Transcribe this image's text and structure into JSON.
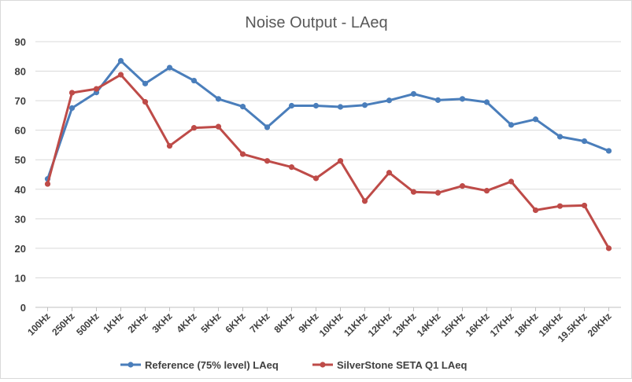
{
  "chart_data": {
    "type": "line",
    "title": "Noise Output - LAeq",
    "xlabel": "",
    "ylabel": "",
    "ylim": [
      0,
      90
    ],
    "yticks": [
      0,
      10,
      20,
      30,
      40,
      50,
      60,
      70,
      80,
      90
    ],
    "grid": true,
    "legend_position": "bottom",
    "categories": [
      "100Hz",
      "250Hz",
      "500Hz",
      "1KHz",
      "2KHz",
      "3KHz",
      "4KHz",
      "5KHz",
      "6KHz",
      "7KHz",
      "8KHz",
      "9KHz",
      "10KHz",
      "11KHz",
      "12KHz",
      "13KHz",
      "14KHz",
      "15KHz",
      "16KHz",
      "17KHz",
      "18KHz",
      "19KHz",
      "19.5KHz",
      "20KHz"
    ],
    "series": [
      {
        "name": "Reference (75% level) LAeq",
        "color": "#4a7ebb",
        "values": [
          43.5,
          67.5,
          72.8,
          83.5,
          75.8,
          81.2,
          76.8,
          70.6,
          68.0,
          61.0,
          68.3,
          68.3,
          67.9,
          68.5,
          70.1,
          72.3,
          70.2,
          70.6,
          69.5,
          61.8,
          63.7,
          57.8,
          56.3,
          53.0
        ]
      },
      {
        "name": "SilverStone SETA Q1 LAeq",
        "color": "#be4b48",
        "values": [
          41.8,
          72.7,
          74.0,
          78.8,
          69.6,
          54.7,
          60.8,
          61.2,
          51.9,
          49.6,
          47.5,
          43.7,
          49.6,
          36.0,
          45.6,
          39.1,
          38.8,
          41.1,
          39.5,
          42.6,
          32.9,
          34.3,
          34.5,
          20.0
        ]
      }
    ]
  }
}
